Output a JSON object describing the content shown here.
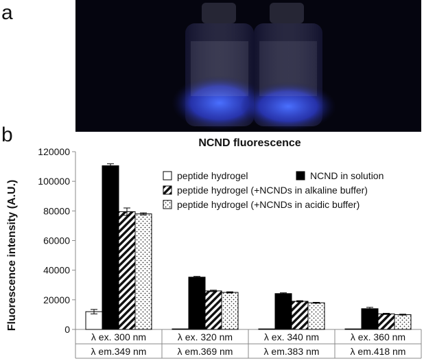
{
  "panel_a_label": "a",
  "panel_b_label": "b",
  "photo": {
    "vial_glow_color": "#3a5bff",
    "background_color": "#05050f"
  },
  "chart_data": {
    "type": "bar",
    "title": "NCND fluorescence",
    "ylabel": "Fluorescence intensity (A.U.)",
    "xlabel": "",
    "ylim": [
      0,
      120000
    ],
    "yticks": [
      "0",
      "20000",
      "40000",
      "60000",
      "80000",
      "100000",
      "120000"
    ],
    "categories": [
      "λ ex. 300 nm",
      "λ ex. 320 nm",
      "λ ex. 340 nm",
      "λ ex. 360 nm"
    ],
    "categories_row2": [
      "λ em.349 nm",
      "λ em.369 nm",
      "λ em.383 nm",
      "λ em.418 nm"
    ],
    "grid": false,
    "legend_position": "top-right",
    "series": [
      {
        "name": "peptide hydrogel",
        "pattern": "white",
        "values": [
          12000,
          300,
          300,
          300
        ],
        "errors": [
          1500,
          0,
          0,
          0
        ]
      },
      {
        "name": "NCND in solution",
        "pattern": "black",
        "values": [
          110500,
          35300,
          24200,
          14000
        ],
        "errors": [
          1300,
          500,
          500,
          900
        ]
      },
      {
        "name": "peptide hydrogel (+NCNDs in alkaline buffer)",
        "pattern": "diagonal",
        "values": [
          79500,
          26000,
          19000,
          10500
        ],
        "errors": [
          2500,
          500,
          400,
          400
        ]
      },
      {
        "name": "peptide hydrogel (+NCNDs in acidic buffer)",
        "pattern": "dotted",
        "values": [
          78000,
          25000,
          18000,
          10000
        ],
        "errors": [
          700,
          400,
          300,
          300
        ]
      }
    ],
    "legend_layout": [
      [
        "peptide hydrogel",
        "NCND in solution"
      ],
      [
        "peptide hydrogel (+NCNDs in alkaline buffer)"
      ],
      [
        "peptide hydrogel (+NCNDs in acidic buffer)"
      ]
    ]
  }
}
